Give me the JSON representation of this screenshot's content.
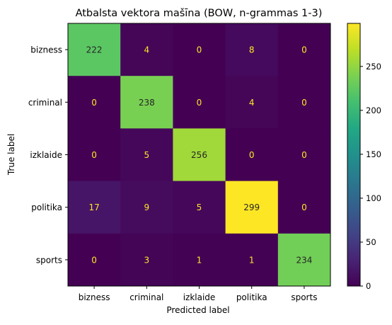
{
  "chart_data": {
    "type": "heatmap",
    "title": "Atbalsta vektora mašīna (BOW, n-grammas 1-3)",
    "xlabel": "Predicted label",
    "ylabel": "True label",
    "x_categories": [
      "bizness",
      "criminal",
      "izklaide",
      "politika",
      "sports"
    ],
    "y_categories": [
      "bizness",
      "criminal",
      "izklaide",
      "politika",
      "sports"
    ],
    "matrix": [
      [
        222,
        4,
        0,
        8,
        0
      ],
      [
        0,
        238,
        0,
        4,
        0
      ],
      [
        0,
        5,
        256,
        0,
        0
      ],
      [
        17,
        9,
        5,
        299,
        0
      ],
      [
        0,
        3,
        1,
        1,
        234
      ]
    ],
    "colormap": "viridis",
    "vmin": 0,
    "vmax": 299,
    "colorbar_ticks": [
      0,
      50,
      100,
      150,
      200,
      250
    ],
    "text_color_low": "#fde725",
    "text_color_high": "#262626"
  }
}
